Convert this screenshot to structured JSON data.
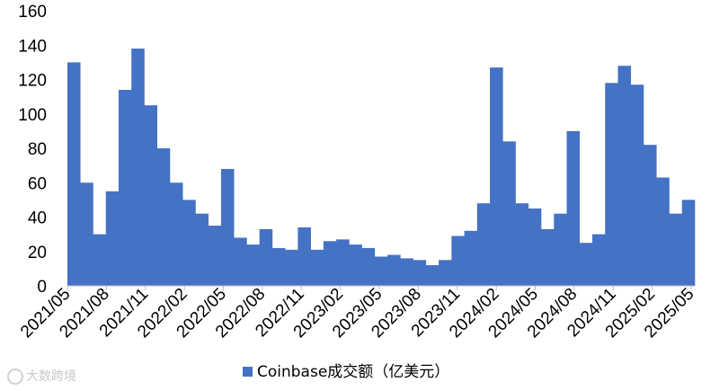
{
  "chart_data": {
    "type": "bar",
    "title": "",
    "xlabel": "",
    "ylabel": "",
    "ylim": [
      0,
      160
    ],
    "yticks": [
      0,
      20,
      40,
      60,
      80,
      100,
      120,
      140,
      160
    ],
    "xtick_labels": [
      "2021/05",
      "2021/08",
      "2021/11",
      "2022/02",
      "2022/05",
      "2022/08",
      "2022/11",
      "2023/02",
      "2023/05",
      "2023/08",
      "2023/11",
      "2024/02",
      "2024/05",
      "2024/08",
      "2024/11",
      "2025/02",
      "2025/05"
    ],
    "legend": "bottom",
    "grid": false,
    "color": "#4472C4",
    "series": [
      {
        "name": "Coinbase成交额（亿美元）",
        "x": [
          "2021/05",
          "2021/06",
          "2021/07",
          "2021/08",
          "2021/09",
          "2021/10",
          "2021/11",
          "2021/12",
          "2022/01",
          "2022/02",
          "2022/03",
          "2022/04",
          "2022/05",
          "2022/06",
          "2022/07",
          "2022/08",
          "2022/09",
          "2022/10",
          "2022/11",
          "2022/12",
          "2023/01",
          "2023/02",
          "2023/03",
          "2023/04",
          "2023/05",
          "2023/06",
          "2023/07",
          "2023/08",
          "2023/09",
          "2023/10",
          "2023/11",
          "2023/12",
          "2024/01",
          "2024/02",
          "2024/03",
          "2024/04",
          "2024/05",
          "2024/06",
          "2024/07",
          "2024/08",
          "2024/09",
          "2024/10",
          "2024/11",
          "2024/12",
          "2025/01",
          "2025/02",
          "2025/03",
          "2025/04",
          "2025/05"
        ],
        "values": [
          130,
          60,
          30,
          55,
          114,
          138,
          105,
          80,
          60,
          50,
          42,
          35,
          68,
          28,
          24,
          33,
          22,
          21,
          34,
          21,
          26,
          27,
          24,
          22,
          17,
          18,
          16,
          15,
          12,
          15,
          29,
          32,
          48,
          127,
          84,
          48,
          45,
          33,
          42,
          90,
          25,
          30,
          118,
          128,
          117,
          82,
          63,
          42,
          50
        ]
      }
    ]
  },
  "legend": {
    "label": "Coinbase成交额（亿美元）"
  },
  "watermark": {
    "text": "大数跨境"
  }
}
